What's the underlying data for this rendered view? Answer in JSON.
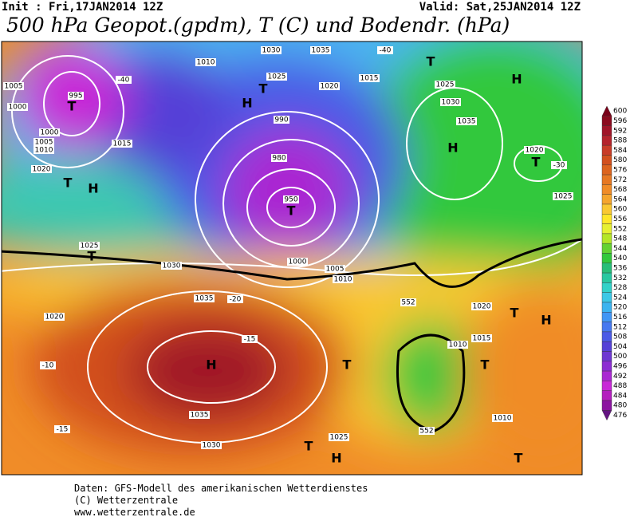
{
  "header": {
    "init": "Init : Fri,17JAN2014 12Z",
    "valid": "Valid: Sat,25JAN2014 12Z",
    "title": "500 hPa Geopot.(gpdm), T (C) und Bodendr. (hPa)"
  },
  "legend": {
    "levels": [
      600,
      596,
      592,
      588,
      584,
      580,
      576,
      572,
      568,
      564,
      560,
      556,
      552,
      548,
      544,
      540,
      536,
      532,
      528,
      524,
      520,
      516,
      512,
      508,
      504,
      500,
      496,
      492,
      488,
      484,
      480,
      476
    ],
    "colors": [
      "#7a0019",
      "#8b0a1e",
      "#a01428",
      "#b4232c",
      "#c83c28",
      "#d2501e",
      "#dc641e",
      "#e67823",
      "#f08c28",
      "#f5a52d",
      "#fac832",
      "#ffe628",
      "#e6f032",
      "#b4e628",
      "#64d232",
      "#32c83c",
      "#28be78",
      "#28c8a0",
      "#32d2c8",
      "#3cc8e6",
      "#3cb4f0",
      "#4196f5",
      "#4678f0",
      "#4b5ae6",
      "#5541d7",
      "#6e37d2",
      "#8c2dd2",
      "#aa28d2",
      "#c828d7",
      "#b41ebe",
      "#8c14a0",
      "#641482"
    ]
  },
  "map": {
    "labels": [
      "T",
      "995",
      "1000",
      "1005",
      "1000",
      "1005",
      "1010",
      "1020",
      "T",
      "H",
      "1015",
      "-40",
      "1010",
      "1030",
      "1035",
      "1025",
      "H",
      "T",
      "1020",
      "1015",
      "-40",
      "T",
      "1025",
      "H",
      "1030",
      "1035",
      "H",
      "T",
      "1020",
      "-30",
      "1025",
      "950",
      "T",
      "990",
      "980",
      "1000",
      "1005",
      "1010",
      "H",
      "1035",
      "1030",
      "1035",
      "1020",
      "-20",
      "-15",
      "-10",
      "-15",
      "1025",
      "1030",
      "T",
      "T",
      "T",
      "T",
      "H",
      "1010",
      "T",
      "H",
      "T",
      "1025",
      "1020",
      "1015",
      "552",
      "552",
      "1010"
    ]
  },
  "footer": {
    "lines": [
      "Daten: GFS-Modell des amerikanischen Wetterdienstes",
      "(C) Wetterzentrale",
      "www.wetterzentrale.de"
    ]
  }
}
